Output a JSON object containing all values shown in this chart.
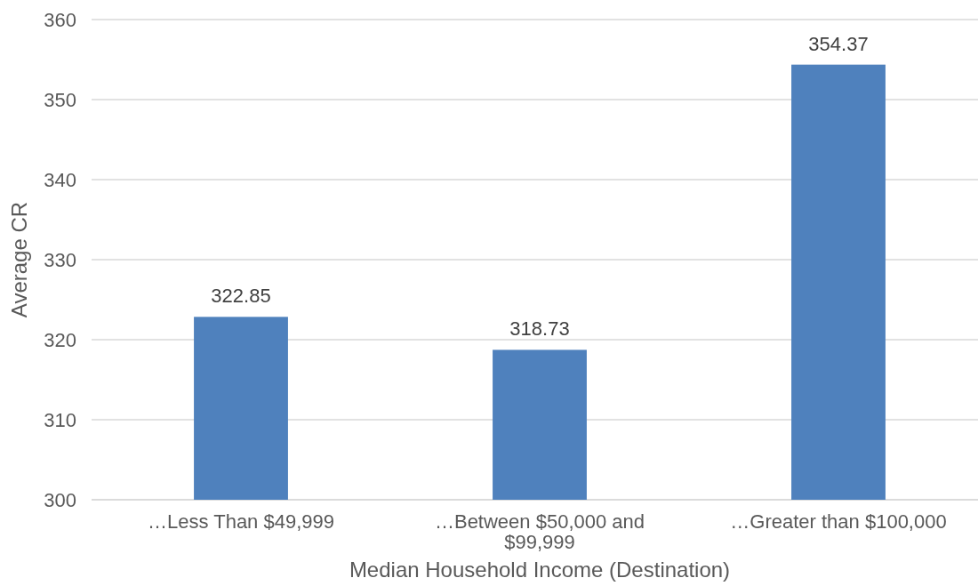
{
  "chart_data": {
    "type": "bar",
    "categories": [
      "…Less Than $49,999",
      "…Between $50,000 and $99,999",
      "…Greater than $100,000"
    ],
    "values": [
      322.85,
      318.73,
      354.37
    ],
    "color": "#4f81bd",
    "ylim": [
      300,
      360
    ],
    "yticks": [
      300,
      310,
      320,
      330,
      340,
      350,
      360
    ],
    "xlabel": "Median Household Income (Destination)",
    "ylabel": "Average CR",
    "data_labels": true,
    "grid": "y"
  }
}
